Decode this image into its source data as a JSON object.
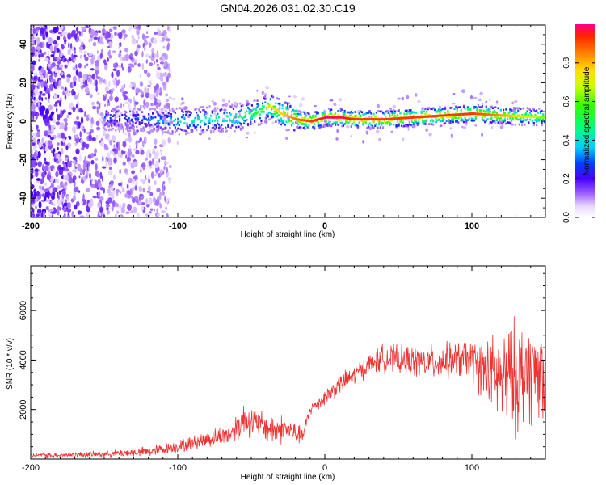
{
  "title": "GN04.2026.031.02.30.C19",
  "chart_data": [
    {
      "type": "heatmap",
      "xlabel": "Height of straight line (km)",
      "ylabel": "Frequency (Hz)",
      "xlim": [
        -200,
        150
      ],
      "ylim": [
        -50,
        50
      ],
      "x_ticks": [
        -200,
        -100,
        0,
        100
      ],
      "y_ticks": [
        -40,
        -20,
        0,
        20,
        40
      ],
      "colorbar": {
        "label": "Normalized spectral amplitude",
        "range": [
          0,
          1
        ],
        "ticks": [
          0.0,
          0.2,
          0.4,
          0.6,
          0.8
        ]
      },
      "ridge": {
        "x": [
          -150,
          -120,
          -100,
          -80,
          -60,
          -45,
          -38,
          -30,
          -20,
          -10,
          0,
          10,
          20,
          30,
          40,
          60,
          80,
          100,
          120,
          150
        ],
        "freq": [
          2,
          1,
          0,
          1,
          2,
          5,
          8,
          4,
          1,
          0,
          2,
          2,
          1,
          1,
          1,
          2,
          3,
          4,
          3,
          2
        ],
        "amp": [
          0.3,
          0.35,
          0.45,
          0.5,
          0.55,
          0.6,
          0.7,
          0.75,
          0.85,
          0.9,
          0.95,
          0.95,
          0.9,
          0.9,
          0.9,
          0.9,
          0.9,
          0.9,
          0.8,
          0.6
        ]
      }
    },
    {
      "type": "line",
      "xlabel": "Height of straight line (km)",
      "ylabel": "SNR (10 * v/v)",
      "xlim": [
        -200,
        150
      ],
      "ylim": [
        0,
        7800
      ],
      "x_ticks": [
        -200,
        -100,
        0,
        100
      ],
      "y_ticks": [
        2000,
        4000,
        6000
      ],
      "color": "#ee3333",
      "envelope": {
        "x": [
          -200,
          -150,
          -120,
          -100,
          -80,
          -65,
          -55,
          -45,
          -35,
          -25,
          -15,
          -10,
          0,
          10,
          20,
          30,
          40,
          50,
          70,
          90,
          100,
          110,
          120,
          130,
          140,
          150
        ],
        "mean": [
          150,
          200,
          300,
          500,
          800,
          1000,
          1600,
          1400,
          1200,
          1200,
          900,
          2000,
          2500,
          3000,
          3400,
          3800,
          4100,
          4000,
          3900,
          4000,
          4000,
          3500,
          3200,
          3300,
          3500,
          3600
        ],
        "amp": [
          100,
          150,
          250,
          300,
          400,
          500,
          900,
          700,
          800,
          600,
          400,
          300,
          400,
          500,
          500,
          500,
          700,
          700,
          800,
          900,
          1000,
          1600,
          2300,
          2800,
          2500,
          2200
        ]
      }
    }
  ]
}
